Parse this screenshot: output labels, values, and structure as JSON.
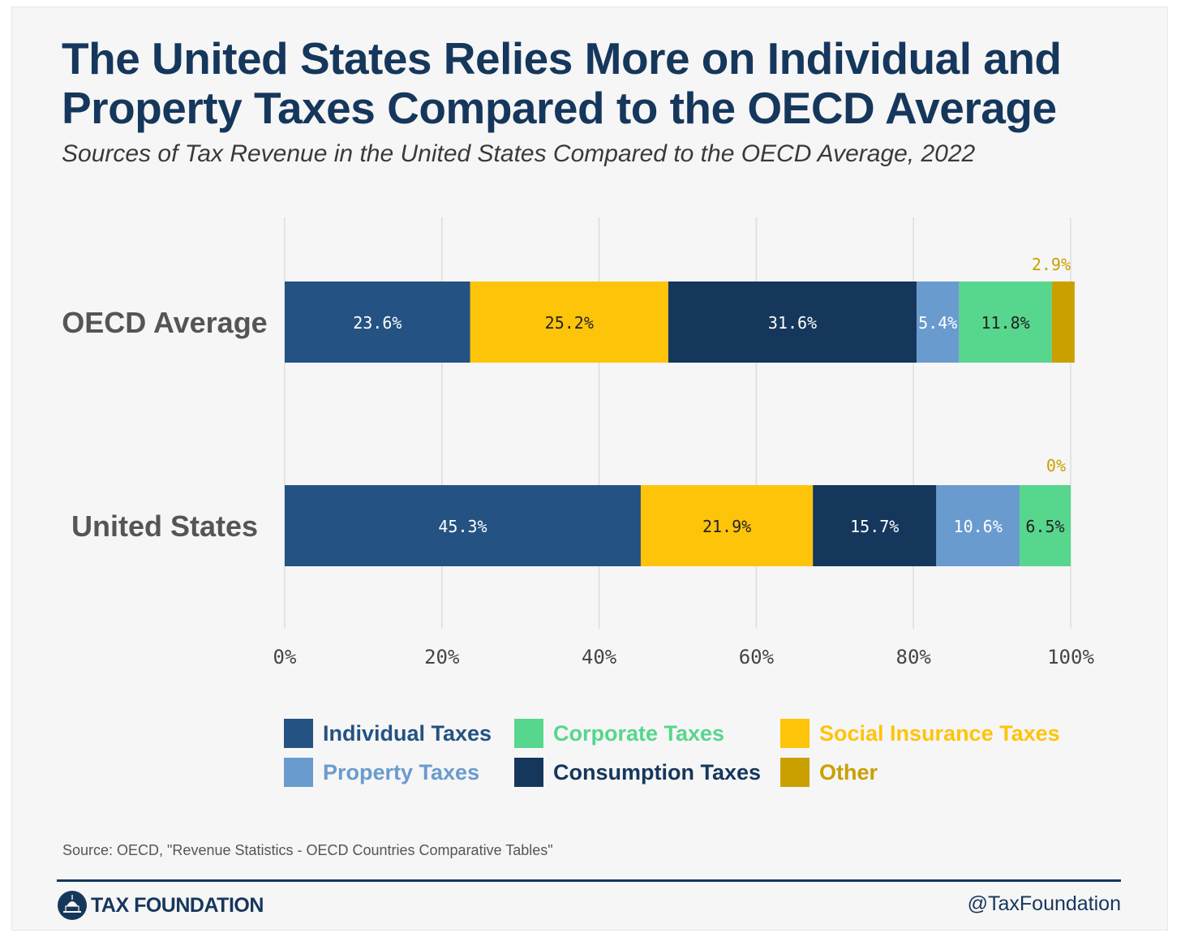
{
  "header": {
    "title": "The United States Relies More on Individual and Property Taxes Compared to the OECD Average",
    "subtitle": "Sources of Tax Revenue in the United States Compared to the OECD Average, 2022"
  },
  "chart_data": {
    "type": "bar",
    "orientation": "horizontal",
    "stacked": true,
    "categories": [
      "OECD Average",
      "United States"
    ],
    "series": [
      {
        "name": "Individual Taxes",
        "color": "#245282",
        "values": [
          23.6,
          45.3
        ],
        "labels": [
          "23.6%",
          "45.3%"
        ]
      },
      {
        "name": "Social Insurance Taxes",
        "color": "#fec40a",
        "values": [
          25.2,
          21.9
        ],
        "labels": [
          "25.2%",
          "21.9%"
        ]
      },
      {
        "name": "Consumption Taxes",
        "color": "#16375c",
        "values": [
          31.6,
          15.7
        ],
        "labels": [
          "31.6%",
          "15.7%"
        ]
      },
      {
        "name": "Property Taxes",
        "color": "#6a9bce",
        "values": [
          5.4,
          10.6
        ],
        "labels": [
          "5.4%",
          "10.6%"
        ]
      },
      {
        "name": "Corporate Taxes",
        "color": "#57d68d",
        "values": [
          11.8,
          6.5
        ],
        "labels": [
          "11.8%",
          "6.5%"
        ]
      },
      {
        "name": "Other",
        "color": "#c9a000",
        "values": [
          2.9,
          0
        ],
        "labels": [
          "2.9%",
          "0%"
        ]
      }
    ],
    "xlim": [
      0,
      100
    ],
    "x_ticks": [
      "0%",
      "20%",
      "40%",
      "60%",
      "80%",
      "100%"
    ],
    "grid": true,
    "legend_position": "bottom"
  },
  "legend": [
    {
      "label": "Individual Taxes",
      "color": "#245282"
    },
    {
      "label": "Corporate Taxes",
      "color": "#57d68d"
    },
    {
      "label": "Social Insurance Taxes",
      "color": "#fec40a"
    },
    {
      "label": "Property Taxes",
      "color": "#6a9bce"
    },
    {
      "label": "Consumption Taxes",
      "color": "#16375c"
    },
    {
      "label": "Other",
      "color": "#c9a000"
    }
  ],
  "footer": {
    "source": "Source: OECD, \"Revenue Statistics - OECD Countries Comparative Tables\"",
    "brand": "TAX FOUNDATION",
    "handle": "@TaxFoundation"
  },
  "colors": {
    "title": "#16375c",
    "grid": "#dddddd",
    "axis_text": "#444444",
    "category_text": "#555555"
  }
}
